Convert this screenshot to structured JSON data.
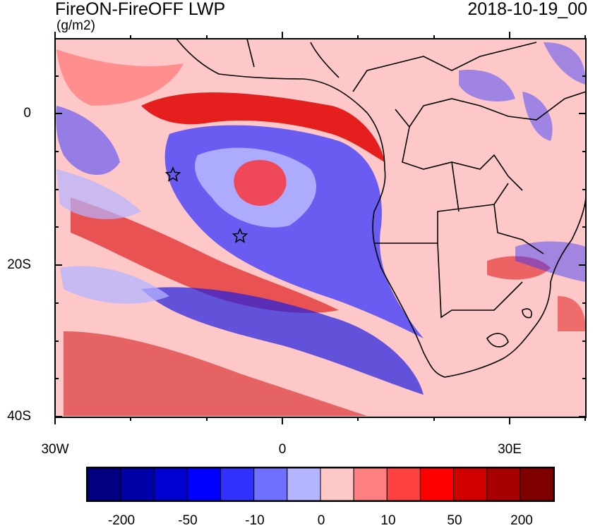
{
  "title": "FireON-FireOFF LWP",
  "units": "(g/m2)",
  "date": "2018-10-19_00",
  "axes": {
    "y_labels": [
      "0",
      "20S",
      "40S"
    ],
    "x_labels": [
      "30W",
      "0",
      "30E"
    ]
  },
  "colorbar": {
    "colors": [
      "#000080",
      "#0000a8",
      "#0000d0",
      "#0000ff",
      "#3030ff",
      "#7070ff",
      "#b4b4ff",
      "#ffc8c8",
      "#ff8080",
      "#ff4040",
      "#ff0000",
      "#d00000",
      "#a80000",
      "#800000"
    ],
    "labels": [
      "-200",
      "-50",
      "-10",
      "0",
      "10",
      "50",
      "200"
    ]
  },
  "markers": [
    "star",
    "star"
  ],
  "palette": {
    "ocean_base": "#ffc8c8",
    "land": "#ffc8c8",
    "border": "#000000"
  }
}
